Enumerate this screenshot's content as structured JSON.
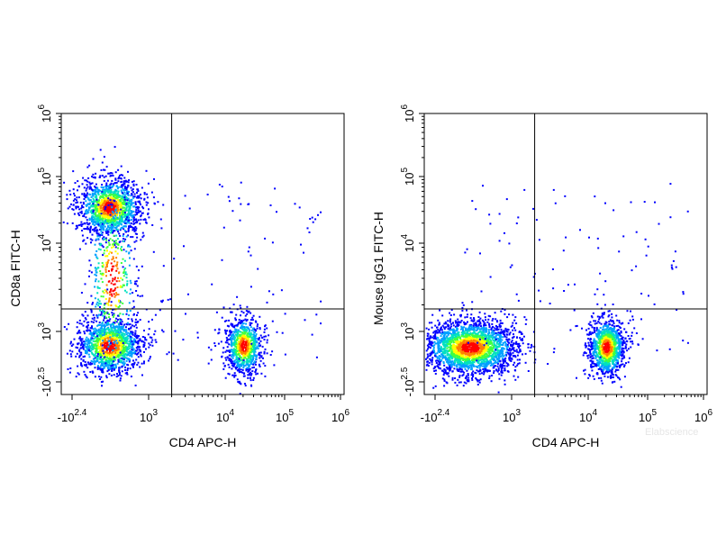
{
  "chart_data": [
    {
      "type": "scatter",
      "xlabel": "CD4 APC-H",
      "ylabel": "CD8a FITC-H",
      "x_scale": "biexponential",
      "y_scale": "biexponential",
      "xlim": [
        -251,
        1000000
      ],
      "ylim": [
        -316,
        1000000
      ],
      "x_ticks": [
        {
          "base": "-10",
          "exp": "2.4",
          "value": -251
        },
        {
          "base": "10",
          "exp": "3",
          "value": 1000
        },
        {
          "base": "10",
          "exp": "4",
          "value": 10000
        },
        {
          "base": "10",
          "exp": "5",
          "value": 100000
        },
        {
          "base": "10",
          "exp": "6",
          "value": 1000000
        }
      ],
      "y_ticks": [
        {
          "base": "-10",
          "exp": "2.5",
          "value": -316
        },
        {
          "base": "10",
          "exp": "3",
          "value": 1000
        },
        {
          "base": "10",
          "exp": "4",
          "value": 10000
        },
        {
          "base": "10",
          "exp": "5",
          "value": 100000
        },
        {
          "base": "10",
          "exp": "6",
          "value": 1000000
        }
      ],
      "quadrant_gates": {
        "x": 2000,
        "y": 1800
      },
      "populations": [
        {
          "name_hint": "CD4-CD8+",
          "x_center": 200,
          "y_center": 35000,
          "count": 1400
        },
        {
          "name_hint": "CD4-CD8-",
          "x_center": 200,
          "y_center": 550,
          "count": 1300
        },
        {
          "name_hint": "CD4+CD8-",
          "x_center": 20000,
          "y_center": 550,
          "count": 900
        },
        {
          "name_hint": "CD4-CD8 intermediate",
          "x_center": 250,
          "y_center": 4000,
          "count": 450
        }
      ],
      "grid": false
    },
    {
      "type": "scatter",
      "xlabel": "CD4 APC-H",
      "ylabel": "Mouse IgG1 FITC-H",
      "x_scale": "biexponential",
      "y_scale": "biexponential",
      "xlim": [
        -251,
        1000000
      ],
      "ylim": [
        -316,
        1000000
      ],
      "x_ticks": [
        {
          "base": "-10",
          "exp": "2.4",
          "value": -251
        },
        {
          "base": "10",
          "exp": "3",
          "value": 1000
        },
        {
          "base": "10",
          "exp": "4",
          "value": 10000
        },
        {
          "base": "10",
          "exp": "5",
          "value": 100000
        },
        {
          "base": "10",
          "exp": "6",
          "value": 1000000
        }
      ],
      "y_ticks": [
        {
          "base": "-10",
          "exp": "2.5",
          "value": -316
        },
        {
          "base": "10",
          "exp": "3",
          "value": 1000
        },
        {
          "base": "10",
          "exp": "4",
          "value": 10000
        },
        {
          "base": "10",
          "exp": "5",
          "value": 100000
        },
        {
          "base": "10",
          "exp": "6",
          "value": 1000000
        }
      ],
      "quadrant_gates": {
        "x": 2000,
        "y": 1800
      },
      "populations": [
        {
          "name_hint": "CD4-",
          "x_center": 150,
          "y_center": 500,
          "count": 2400
        },
        {
          "name_hint": "CD4+",
          "x_center": 20000,
          "y_center": 500,
          "count": 1100
        }
      ],
      "grid": false
    }
  ],
  "watermark": "Elabscience",
  "colors": {
    "density": [
      "#0000ff",
      "#00a0ff",
      "#00e0c0",
      "#40ff40",
      "#ffff00",
      "#ff8000",
      "#ff0000"
    ],
    "axis": "#000000",
    "gate": "#000000"
  }
}
